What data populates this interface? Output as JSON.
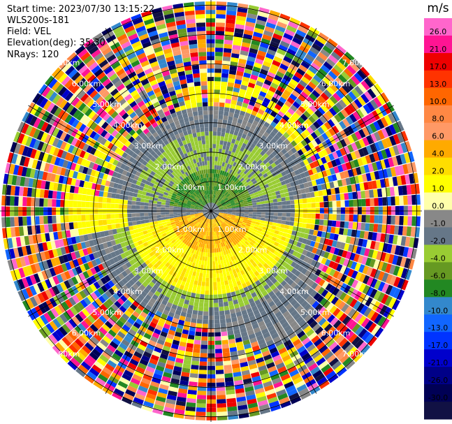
{
  "meta": {
    "start_time": "Start time: 2023/07/30 13:15:22",
    "instrument": "WLS200s-181",
    "field": "Field: VEL",
    "elevation": "Elevation(deg): 35.30",
    "nrays": "NRays: 120"
  },
  "chart_data": {
    "type": "heatmap",
    "projection": "polar-ppi",
    "range_rings_km": [
      1,
      2,
      3,
      4,
      5,
      6,
      7
    ],
    "range_ring_labels": [
      "1.00km",
      "2.00km",
      "3.00km",
      "4.00km",
      "5.00km",
      "6.00km",
      "7.00km"
    ],
    "colorbar": {
      "unit": "m/s",
      "ticks": [
        "26.0",
        "21.0",
        "17.0",
        "13.0",
        "10.0",
        "8.0",
        "6.0",
        "4.0",
        "2.0",
        "1.0",
        "0.0",
        "-1.0",
        "-2.0",
        "-4.0",
        "-6.0",
        "-8.0",
        "-10.0",
        "-13.0",
        "-17.0",
        "-21.0",
        "-26.0",
        "-30.0"
      ],
      "colors": [
        "#ff66cc",
        "#ff1493",
        "#ee0000",
        "#ff3300",
        "#ff6600",
        "#ff8844",
        "#ff9966",
        "#ffaa00",
        "#ffdd00",
        "#ffff00",
        "#ffffaa",
        "#888888",
        "#667788",
        "#99cc33",
        "#669922",
        "#228822",
        "#3388cc",
        "#1166ff",
        "#0033ff",
        "#0000cc",
        "#000088",
        "#000055",
        "#111144"
      ]
    },
    "grid": true,
    "nrays": 120
  }
}
